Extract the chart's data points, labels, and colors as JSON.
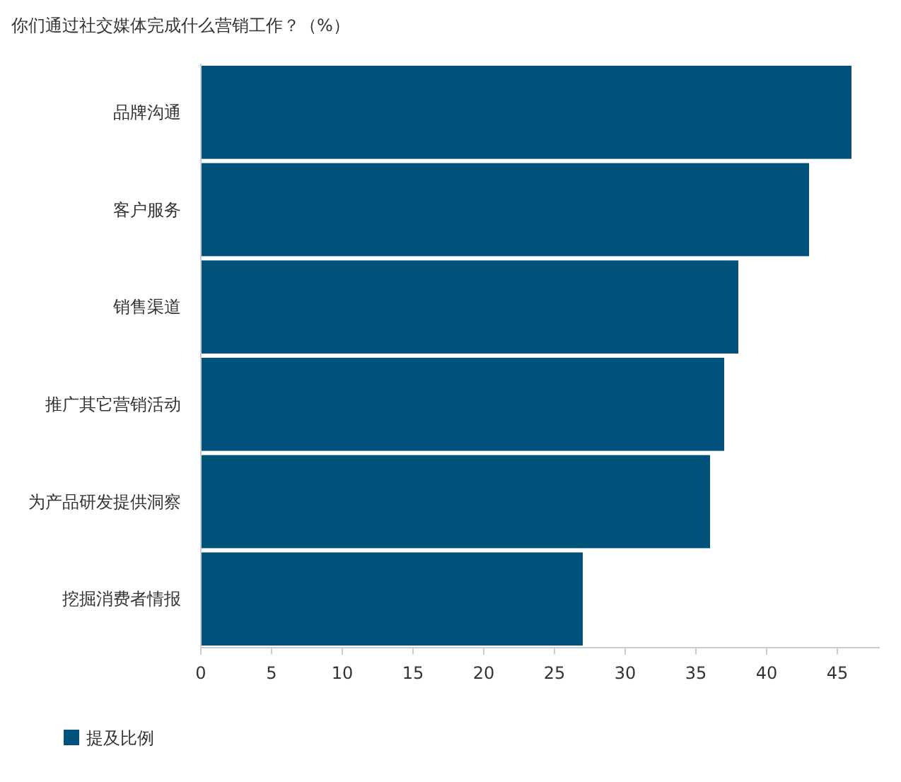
{
  "chart_data": {
    "type": "bar",
    "orientation": "horizontal",
    "title": "你们通过社交媒体完成什么营销工作？（%）",
    "categories": [
      "品牌沟通",
      "客户服务",
      "销售渠道",
      "推广其它营销活动",
      "为产品研发提供洞察",
      "挖掘消费者情报"
    ],
    "series": [
      {
        "name": "提及比例",
        "color": "#00527a",
        "values": [
          46,
          43,
          38,
          37,
          36,
          27
        ]
      }
    ],
    "xlim": [
      0,
      48
    ],
    "xticks": [
      0,
      5,
      10,
      15,
      20,
      25,
      30,
      35,
      40,
      45
    ],
    "legend": "bottom left"
  }
}
